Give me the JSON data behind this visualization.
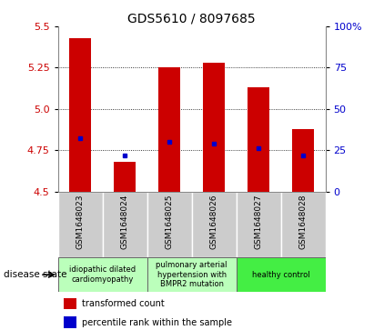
{
  "title": "GDS5610 / 8097685",
  "samples": [
    "GSM1648023",
    "GSM1648024",
    "GSM1648025",
    "GSM1648026",
    "GSM1648027",
    "GSM1648028"
  ],
  "red_values": [
    5.43,
    4.68,
    5.25,
    5.28,
    5.13,
    4.88
  ],
  "blue_values": [
    4.82,
    4.72,
    4.8,
    4.79,
    4.76,
    4.72
  ],
  "ylim": [
    4.5,
    5.5
  ],
  "ylim_right": [
    0,
    100
  ],
  "yticks_left": [
    4.5,
    4.75,
    5.0,
    5.25,
    5.5
  ],
  "yticks_right": [
    0,
    25,
    50,
    75,
    100
  ],
  "bar_bottom": 4.5,
  "bar_color": "#cc0000",
  "marker_color": "#0000cc",
  "title_fontsize": 10,
  "disease_groups": [
    {
      "label": "idiopathic dilated\ncardiomyopathy",
      "start": 0,
      "end": 1,
      "color": "#bbffbb"
    },
    {
      "label": "pulmonary arterial\nhypertension with\nBMPR2 mutation",
      "start": 2,
      "end": 3,
      "color": "#bbffbb"
    },
    {
      "label": "healthy control",
      "start": 4,
      "end": 5,
      "color": "#44ee44"
    }
  ],
  "legend_red": "transformed count",
  "legend_blue": "percentile rank within the sample",
  "disease_state_label": "disease state",
  "bg_color": "#ffffff",
  "tick_label_color_left": "#cc0000",
  "tick_label_color_right": "#0000cc",
  "label_bg_color": "#cccccc",
  "label_sep_color": "#ffffff",
  "grid_yticks": [
    4.75,
    5.0,
    5.25
  ]
}
